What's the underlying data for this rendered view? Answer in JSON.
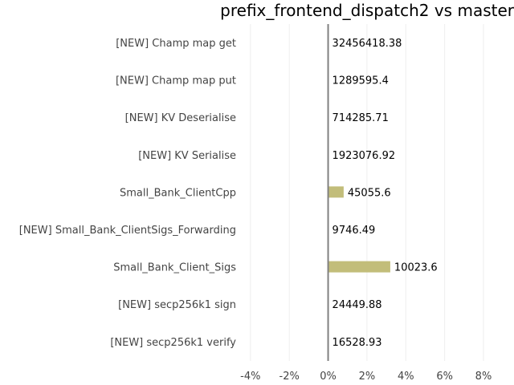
{
  "chart_data": {
    "type": "bar",
    "orientation": "horizontal",
    "title": "prefix_frontend_dispatch2 vs master",
    "xlabel": "",
    "ylabel": "",
    "categories": [
      "[NEW] Champ map get",
      "[NEW] Champ map put",
      "[NEW] KV Deserialise",
      "[NEW] KV Serialise",
      "Small_Bank_ClientCpp",
      "[NEW] Small_Bank_ClientSigs_Forwarding",
      "Small_Bank_Client_Sigs",
      "[NEW] secp256k1 sign",
      "[NEW] secp256k1 verify"
    ],
    "values": [
      0,
      0,
      0,
      0,
      0.8,
      0,
      3.2,
      0,
      0
    ],
    "value_unit": "%",
    "data_labels": [
      "32456418.38",
      "1289595.4",
      "714285.71",
      "1923076.92",
      "45055.6",
      "9746.49",
      "10023.6",
      "24449.88",
      "16528.93"
    ],
    "xlim": [
      -4.2,
      9.2
    ],
    "xticks": [
      -4,
      -2,
      0,
      2,
      4,
      6,
      8
    ],
    "xtick_labels": [
      "-4%",
      "-2%",
      "0%",
      "2%",
      "4%",
      "6%",
      "8%"
    ],
    "grid": true,
    "legend": "none",
    "bar_color": "#c2bd7a",
    "zero_line_color": "#808080",
    "grid_color": "#eeeeee"
  }
}
